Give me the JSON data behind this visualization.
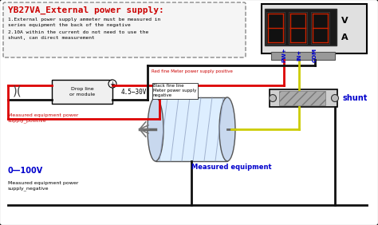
{
  "title": "YB27VA_External power supply:",
  "bg_color": "#ffffff",
  "border_color": "#000000",
  "text_color_red": "#cc0000",
  "text_color_black": "#000000",
  "text_color_blue": "#0000cc",
  "note1": "1.External power supply ammeter must be measured in\nseries equipment the back of the negative",
  "note2": "2.10A within the current do not need to use the\nshunt, can direct measurement",
  "label_red_fine": "Red fine Meter power supply positive",
  "label_black_fine": "Black fine line\nMeter power supply\nnegative",
  "label_drop": "Drop line\nor module",
  "label_voltage": "4.5—30V",
  "label_pw": "PW+",
  "label_in": "IN+",
  "label_com": "COM",
  "label_shunt": "shunt",
  "label_measured_pos": "Measured equipment power\nsupply_positive",
  "label_measured_neg": "Measured equipment power\nsupply_negative",
  "label_voltage_range": "0—100V",
  "label_measured_eq": "Measured equipment",
  "wire_red": "#dd0000",
  "wire_black": "#111111",
  "wire_yellow": "#cccc00",
  "meter_bg": "#e0e0e0",
  "shunt_bg": "#c8c8c8"
}
